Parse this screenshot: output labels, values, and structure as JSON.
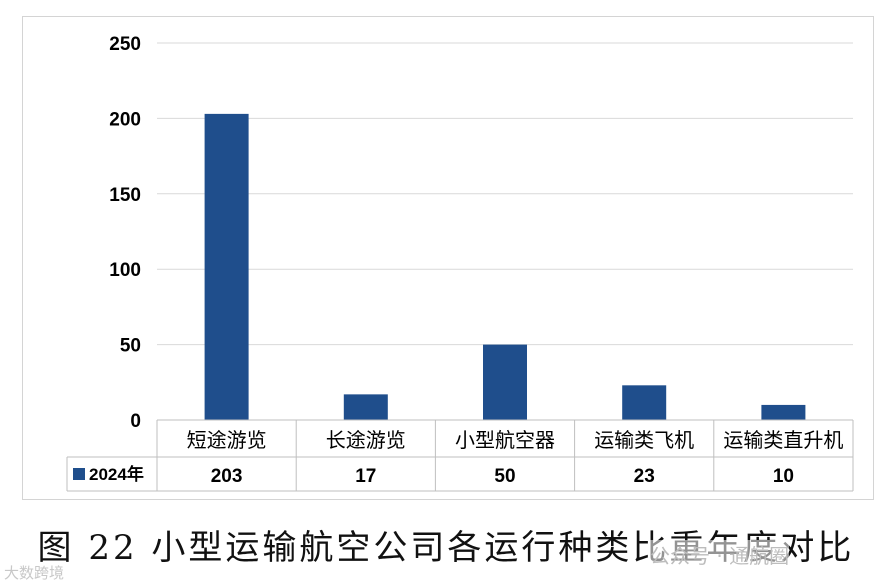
{
  "chart_data": {
    "type": "bar",
    "categories": [
      "短途游览",
      "长途游览",
      "小型航空器",
      "运输类飞机",
      "运输类直升机"
    ],
    "series": [
      {
        "name": "2024年",
        "values": [
          203,
          17,
          50,
          23,
          10
        ]
      }
    ],
    "title": "",
    "xlabel": "",
    "ylabel": "",
    "ylim": [
      0,
      250
    ],
    "yticks": [
      0,
      50,
      100,
      150,
      200,
      250
    ],
    "grid": true,
    "data_table": true,
    "bar_color": "#1f4e8c",
    "legend_position": "data-table-row-header"
  },
  "caption": "图 22  小型运输航空公司各运行种类比重年度对比",
  "watermark_left": "大数跨境",
  "watermark_right": "公众号 · 通航圈"
}
